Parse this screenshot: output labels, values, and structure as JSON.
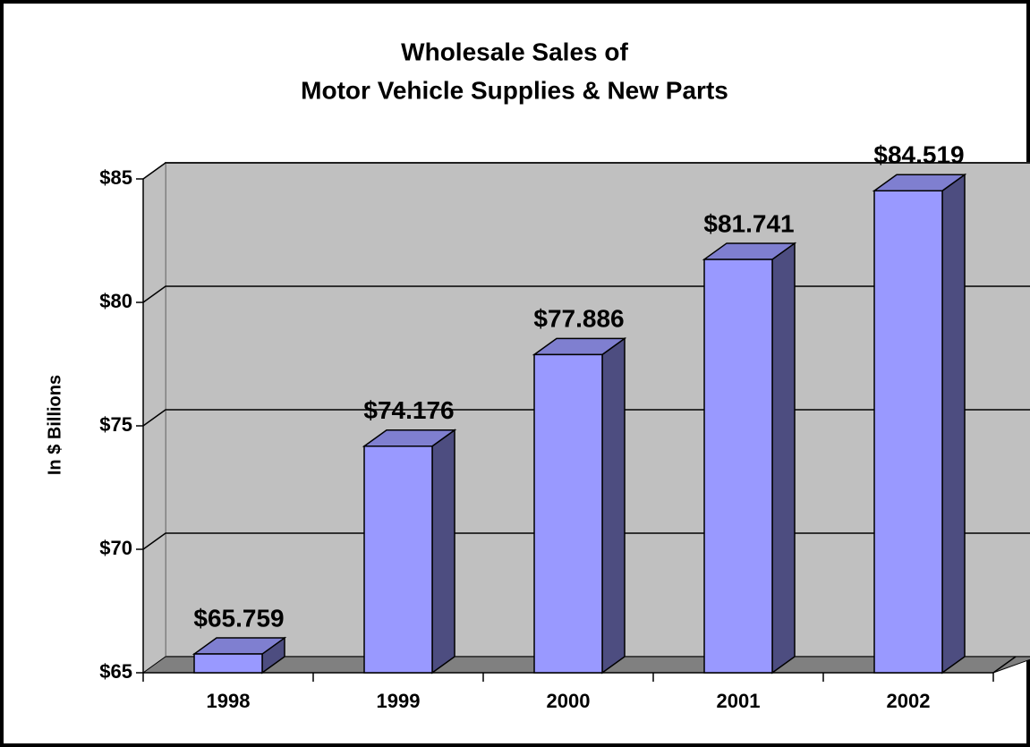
{
  "chart_data": {
    "type": "bar3d",
    "title": [
      "Wholesale Sales of",
      "Motor Vehicle Supplies & New Parts"
    ],
    "y_label": "In $ Billions",
    "categories": [
      "1998",
      "1999",
      "2000",
      "2001",
      "2002"
    ],
    "values": [
      65.759,
      74.176,
      77.886,
      81.741,
      84.519
    ],
    "value_labels": [
      "$65.759",
      "$74.176",
      "$77.886",
      "$81.741",
      "$84.519"
    ],
    "color": "#9999ff",
    "ylim": [
      65,
      85
    ],
    "yticks": [
      {
        "value": 65,
        "label": "$65"
      },
      {
        "value": 70,
        "label": "$70"
      },
      {
        "value": 75,
        "label": "$75"
      },
      {
        "value": 80,
        "label": "$80"
      },
      {
        "value": 85,
        "label": "$85"
      }
    ],
    "grid": true
  }
}
